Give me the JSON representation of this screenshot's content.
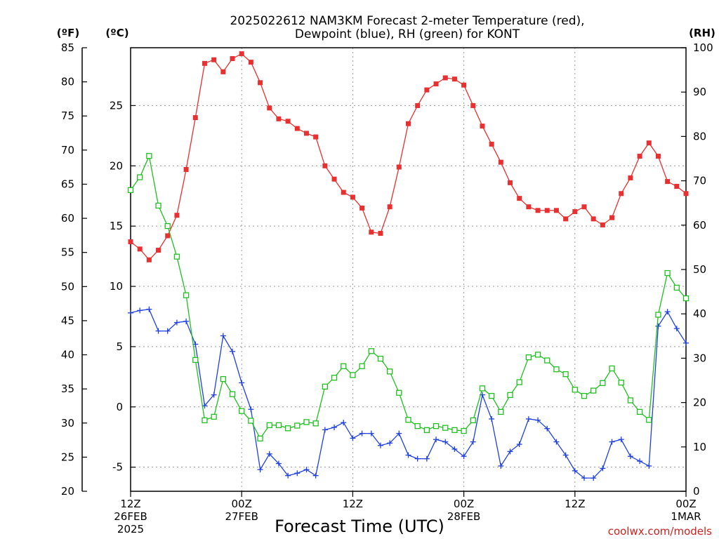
{
  "chart_data": {
    "type": "line",
    "title_line1": "2025022612 NAM3KM Forecast 2-meter Temperature (red),",
    "title_line2": "Dewpoint (blue), RH (green) for KONT",
    "xlabel": "Forecast Time (UTC)",
    "credit": "coolwx.com/models",
    "units": {
      "f": "(ºF)",
      "c": "(ºC)",
      "rh": "(RH)"
    },
    "x_ticks": [
      {
        "hour": 0,
        "label": "12Z",
        "sub1": "26FEB",
        "sub2": "2025"
      },
      {
        "hour": 12,
        "label": "00Z",
        "sub1": "27FEB",
        "sub2": ""
      },
      {
        "hour": 24,
        "label": "12Z",
        "sub1": "",
        "sub2": ""
      },
      {
        "hour": 36,
        "label": "00Z",
        "sub1": "28FEB",
        "sub2": ""
      },
      {
        "hour": 48,
        "label": "12Z",
        "sub1": "",
        "sub2": ""
      },
      {
        "hour": 60,
        "label": "00Z",
        "sub1": "1MAR",
        "sub2": ""
      }
    ],
    "xlim": [
      0,
      60
    ],
    "ylim_c": [
      -7,
      29.8
    ],
    "ylim_f": [
      20,
      85
    ],
    "ylim_rh": [
      0,
      100
    ],
    "c_ticks": [
      -5,
      0,
      5,
      10,
      15,
      20,
      25
    ],
    "f_ticks": [
      20,
      25,
      30,
      35,
      40,
      45,
      50,
      55,
      60,
      65,
      70,
      75,
      80,
      85
    ],
    "rh_ticks": [
      0,
      10,
      20,
      30,
      40,
      50,
      60,
      70,
      80,
      90,
      100
    ],
    "colors": {
      "temperature": "#e83030",
      "dewpoint": "#2040e0",
      "rh": "#20c020",
      "grid": "#999999"
    },
    "series": [
      {
        "name": "Temperature",
        "axis": "c",
        "values": [
          13.7,
          13.1,
          12.2,
          13.0,
          14.2,
          15.9,
          19.7,
          24.0,
          28.5,
          28.8,
          27.8,
          28.9,
          29.3,
          28.6,
          26.9,
          24.8,
          23.9,
          23.7,
          23.1,
          22.7,
          22.4,
          20.0,
          18.9,
          17.8,
          17.4,
          16.5,
          14.5,
          14.4,
          16.6,
          19.9,
          23.5,
          25.0,
          26.3,
          26.8,
          27.3,
          27.2,
          26.7,
          25.0,
          23.3,
          21.8,
          20.3,
          18.6,
          17.3,
          16.6,
          16.3,
          16.3,
          16.3,
          15.6,
          16.2,
          16.6,
          15.6,
          15.1,
          15.7,
          17.7,
          19.0,
          20.8,
          21.9,
          20.8,
          18.7,
          18.3,
          17.7
        ]
      },
      {
        "name": "Dewpoint",
        "axis": "c",
        "values": [
          7.8,
          8.0,
          8.1,
          6.3,
          6.3,
          7.0,
          7.1,
          5.2,
          0.1,
          1.0,
          5.9,
          4.6,
          2.0,
          -0.2,
          -5.2,
          -3.9,
          -4.7,
          -5.7,
          -5.5,
          -5.2,
          -5.7,
          -1.9,
          -1.7,
          -1.3,
          -2.6,
          -2.2,
          -2.2,
          -3.2,
          -3.0,
          -2.2,
          -4.0,
          -4.3,
          -4.3,
          -2.7,
          -2.9,
          -3.5,
          -4.1,
          -2.9,
          1.0,
          -1.0,
          -4.9,
          -3.7,
          -3.1,
          -1.0,
          -1.1,
          -1.8,
          -2.9,
          -4.0,
          -5.3,
          -5.9,
          -5.9,
          -5.1,
          -2.9,
          -2.7,
          -4.1,
          -4.5,
          -4.9,
          6.7,
          7.9,
          6.5,
          5.3
        ]
      },
      {
        "name": "RH",
        "axis": "rh",
        "values": [
          67.9,
          70.8,
          75.6,
          64.4,
          59.8,
          52.9,
          44.2,
          29.6,
          16.0,
          16.8,
          25.3,
          21.9,
          18.1,
          15.9,
          11.9,
          14.9,
          14.9,
          14.2,
          14.8,
          15.6,
          15.3,
          23.6,
          25.6,
          28.2,
          26.2,
          28.2,
          31.6,
          29.9,
          27.0,
          22.2,
          16.1,
          14.7,
          13.8,
          14.7,
          14.3,
          13.8,
          13.6,
          16.0,
          23.2,
          21.5,
          17.9,
          21.7,
          24.6,
          30.2,
          30.8,
          29.5,
          27.5,
          26.4,
          22.9,
          21.5,
          22.7,
          24.4,
          27.7,
          24.5,
          20.5,
          17.9,
          16.1,
          39.8,
          49.2,
          45.9,
          43.5
        ]
      }
    ]
  }
}
